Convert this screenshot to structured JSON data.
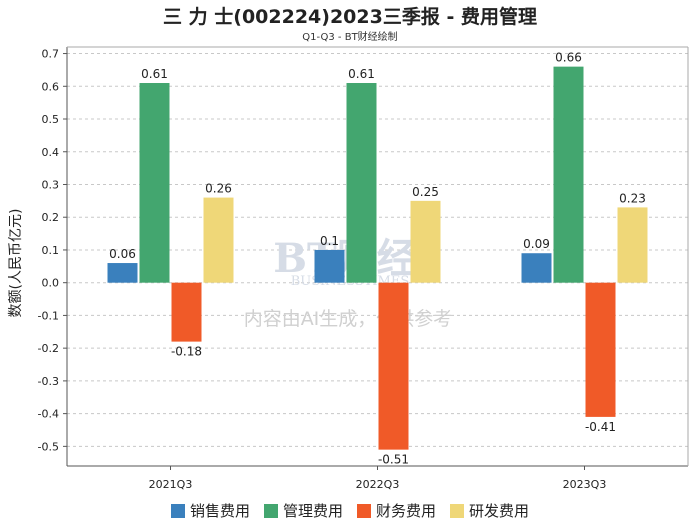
{
  "chart_data": {
    "type": "bar",
    "title": "三 力 士(002224)2023三季报 - 费用管理",
    "subtitle": "Q1-Q3 - BT财经绘制",
    "xlabel": "",
    "ylabel": "数额(人民币亿元)",
    "categories": [
      "2021Q3",
      "2022Q3",
      "2023Q3"
    ],
    "series": [
      {
        "name": "销售费用",
        "color": "#3a80bd",
        "values": [
          0.06,
          0.1,
          0.09
        ]
      },
      {
        "name": "管理费用",
        "color": "#43a66f",
        "values": [
          0.61,
          0.61,
          0.66
        ]
      },
      {
        "name": "财务费用",
        "color": "#f05a28",
        "values": [
          -0.18,
          -0.51,
          -0.41
        ]
      },
      {
        "name": "研发费用",
        "color": "#efd778",
        "values": [
          0.26,
          0.25,
          0.23
        ]
      }
    ],
    "ylim": [
      -0.56,
      0.72
    ],
    "yticks": [
      -0.5,
      -0.4,
      -0.3,
      -0.2,
      -0.1,
      0.0,
      0.1,
      0.2,
      0.3,
      0.4,
      0.5,
      0.6,
      0.7
    ],
    "ytick_labels": [
      "-0.5",
      "-0.4",
      "-0.3",
      "-0.2",
      "-0.1",
      "0.0",
      "0.1",
      "0.2",
      "0.3",
      "0.4",
      "0.5",
      "0.6",
      "0.7"
    ],
    "grid": true,
    "legend_position": "bottom-center"
  },
  "watermark": {
    "logo_text": "BT财经",
    "logo_sub": "BUSINESSTIMES",
    "notice": "内容由AI生成，仅供参考"
  }
}
